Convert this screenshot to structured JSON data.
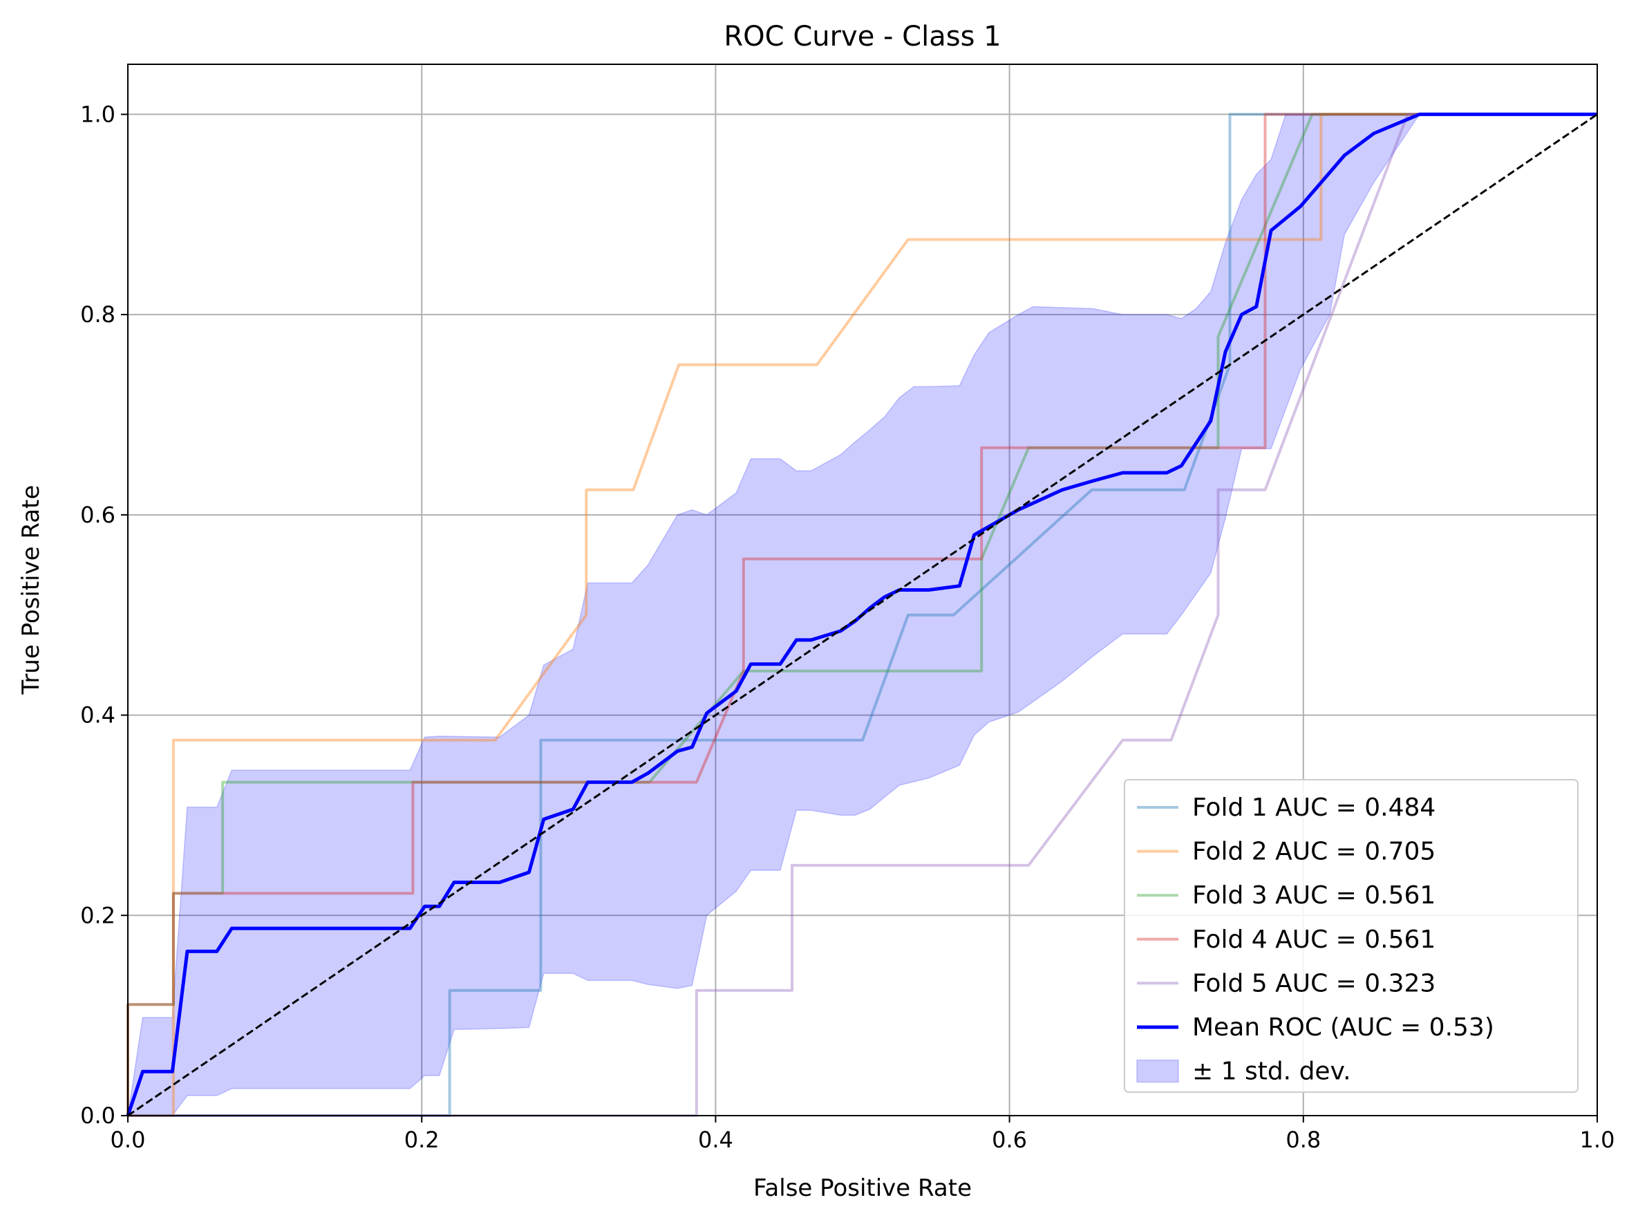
{
  "chart_data": {
    "type": "line",
    "title": "ROC Curve - Class 1",
    "xlabel": "False Positive Rate",
    "ylabel": "True Positive Rate",
    "xlim": [
      0,
      1
    ],
    "ylim": [
      0,
      1.05
    ],
    "grid": true,
    "legend_position": "bottom-right",
    "x_ticks": [
      "0.0",
      "0.2",
      "0.4",
      "0.6",
      "0.8",
      "1.0"
    ],
    "y_ticks": [
      "0.0",
      "0.2",
      "0.4",
      "0.6",
      "0.8",
      "1.0"
    ],
    "series": [
      {
        "name": "Fold 1 AUC = 0.484",
        "color": "#1f77b4",
        "opacity": 0.4,
        "points": [
          [
            0,
            0
          ],
          [
            0.219,
            0
          ],
          [
            0.219,
            0.125
          ],
          [
            0.281,
            0.125
          ],
          [
            0.281,
            0.375
          ],
          [
            0.5,
            0.375
          ],
          [
            0.531,
            0.5
          ],
          [
            0.562,
            0.5
          ],
          [
            0.656,
            0.625
          ],
          [
            0.719,
            0.625
          ],
          [
            0.75,
            0.75
          ],
          [
            0.75,
            1.0
          ],
          [
            1.0,
            1.0
          ]
        ]
      },
      {
        "name": "Fold 2 AUC = 0.705",
        "color": "#ff7f0e",
        "opacity": 0.4,
        "points": [
          [
            0,
            0
          ],
          [
            0.031,
            0
          ],
          [
            0.031,
            0.375
          ],
          [
            0.25,
            0.375
          ],
          [
            0.312,
            0.5
          ],
          [
            0.312,
            0.625
          ],
          [
            0.344,
            0.625
          ],
          [
            0.375,
            0.75
          ],
          [
            0.469,
            0.75
          ],
          [
            0.531,
            0.875
          ],
          [
            0.812,
            0.875
          ],
          [
            0.812,
            1.0
          ],
          [
            1.0,
            1.0
          ]
        ]
      },
      {
        "name": "Fold 3 AUC = 0.561",
        "color": "#2ca02c",
        "opacity": 0.4,
        "points": [
          [
            0,
            0
          ],
          [
            0,
            0.111
          ],
          [
            0.031,
            0.111
          ],
          [
            0.031,
            0.222
          ],
          [
            0.0645,
            0.222
          ],
          [
            0.0645,
            0.333
          ],
          [
            0.355,
            0.333
          ],
          [
            0.419,
            0.444
          ],
          [
            0.581,
            0.444
          ],
          [
            0.581,
            0.556
          ],
          [
            0.613,
            0.667
          ],
          [
            0.742,
            0.667
          ],
          [
            0.742,
            0.778
          ],
          [
            0.806,
            1.0
          ],
          [
            1.0,
            1.0
          ]
        ]
      },
      {
        "name": "Fold 4 AUC = 0.561",
        "color": "#d62728",
        "opacity": 0.4,
        "points": [
          [
            0,
            0
          ],
          [
            0,
            0.111
          ],
          [
            0.031,
            0.111
          ],
          [
            0.031,
            0.222
          ],
          [
            0.194,
            0.222
          ],
          [
            0.194,
            0.333
          ],
          [
            0.387,
            0.333
          ],
          [
            0.419,
            0.444
          ],
          [
            0.419,
            0.556
          ],
          [
            0.581,
            0.556
          ],
          [
            0.581,
            0.667
          ],
          [
            0.774,
            0.667
          ],
          [
            0.774,
            1.0
          ],
          [
            1.0,
            1.0
          ]
        ]
      },
      {
        "name": "Fold 5 AUC = 0.323",
        "color": "#9467bd",
        "opacity": 0.4,
        "points": [
          [
            0,
            0
          ],
          [
            0.387,
            0
          ],
          [
            0.387,
            0.125
          ],
          [
            0.452,
            0.125
          ],
          [
            0.452,
            0.25
          ],
          [
            0.613,
            0.25
          ],
          [
            0.677,
            0.375
          ],
          [
            0.71,
            0.375
          ],
          [
            0.742,
            0.5
          ],
          [
            0.742,
            0.625
          ],
          [
            0.774,
            0.625
          ],
          [
            0.871,
            1.0
          ],
          [
            1.0,
            1.0
          ]
        ]
      },
      {
        "name": "Mean ROC (AUC = 0.53)",
        "color": "#0000ff",
        "opacity": 1,
        "points": [
          [
            0,
            0
          ],
          [
            0.0101,
            0.044
          ],
          [
            0.0303,
            0.044
          ],
          [
            0.0404,
            0.164
          ],
          [
            0.0606,
            0.164
          ],
          [
            0.0707,
            0.187
          ],
          [
            0.192,
            0.187
          ],
          [
            0.202,
            0.209
          ],
          [
            0.212,
            0.209
          ],
          [
            0.222,
            0.233
          ],
          [
            0.253,
            0.233
          ],
          [
            0.273,
            0.243
          ],
          [
            0.283,
            0.296
          ],
          [
            0.303,
            0.306
          ],
          [
            0.313,
            0.333
          ],
          [
            0.343,
            0.333
          ],
          [
            0.354,
            0.342
          ],
          [
            0.374,
            0.364
          ],
          [
            0.384,
            0.368
          ],
          [
            0.394,
            0.402
          ],
          [
            0.414,
            0.424
          ],
          [
            0.424,
            0.451
          ],
          [
            0.444,
            0.451
          ],
          [
            0.455,
            0.475
          ],
          [
            0.465,
            0.475
          ],
          [
            0.485,
            0.484
          ],
          [
            0.495,
            0.494
          ],
          [
            0.505,
            0.507
          ],
          [
            0.515,
            0.518
          ],
          [
            0.525,
            0.525
          ],
          [
            0.545,
            0.525
          ],
          [
            0.566,
            0.529
          ],
          [
            0.576,
            0.58
          ],
          [
            0.606,
            0.605
          ],
          [
            0.636,
            0.625
          ],
          [
            0.657,
            0.634
          ],
          [
            0.677,
            0.642
          ],
          [
            0.707,
            0.642
          ],
          [
            0.717,
            0.649
          ],
          [
            0.737,
            0.694
          ],
          [
            0.747,
            0.763
          ],
          [
            0.758,
            0.8
          ],
          [
            0.768,
            0.808
          ],
          [
            0.778,
            0.884
          ],
          [
            0.798,
            0.908
          ],
          [
            0.808,
            0.925
          ],
          [
            0.828,
            0.959
          ],
          [
            0.848,
            0.981
          ],
          [
            0.879,
            1.0
          ],
          [
            1.0,
            1.0
          ]
        ]
      }
    ],
    "reference_line": {
      "points": [
        [
          0,
          0
        ],
        [
          1,
          1
        ]
      ],
      "color": "#000000",
      "style": "dashed"
    },
    "std_band": {
      "name": "± 1 std. dev.",
      "color": "#0000ff",
      "opacity": 0.2,
      "upper": [
        [
          0,
          0
        ],
        [
          0.0101,
          0.098
        ],
        [
          0.0303,
          0.098
        ],
        [
          0.0404,
          0.308
        ],
        [
          0.0606,
          0.308
        ],
        [
          0.0707,
          0.345
        ],
        [
          0.192,
          0.345
        ],
        [
          0.202,
          0.378
        ],
        [
          0.212,
          0.379
        ],
        [
          0.253,
          0.378
        ],
        [
          0.273,
          0.4
        ],
        [
          0.283,
          0.45
        ],
        [
          0.303,
          0.466
        ],
        [
          0.313,
          0.532
        ],
        [
          0.343,
          0.532
        ],
        [
          0.354,
          0.55
        ],
        [
          0.374,
          0.6
        ],
        [
          0.384,
          0.605
        ],
        [
          0.394,
          0.6
        ],
        [
          0.414,
          0.622
        ],
        [
          0.424,
          0.656
        ],
        [
          0.444,
          0.656
        ],
        [
          0.455,
          0.644
        ],
        [
          0.465,
          0.644
        ],
        [
          0.485,
          0.66
        ],
        [
          0.495,
          0.673
        ],
        [
          0.505,
          0.685
        ],
        [
          0.515,
          0.698
        ],
        [
          0.525,
          0.717
        ],
        [
          0.535,
          0.728
        ],
        [
          0.545,
          0.728
        ],
        [
          0.566,
          0.729
        ],
        [
          0.576,
          0.76
        ],
        [
          0.586,
          0.782
        ],
        [
          0.606,
          0.8
        ],
        [
          0.616,
          0.808
        ],
        [
          0.657,
          0.806
        ],
        [
          0.677,
          0.8
        ],
        [
          0.707,
          0.8
        ],
        [
          0.717,
          0.796
        ],
        [
          0.727,
          0.806
        ],
        [
          0.737,
          0.823
        ],
        [
          0.747,
          0.872
        ],
        [
          0.758,
          0.915
        ],
        [
          0.768,
          0.94
        ],
        [
          0.778,
          0.955
        ],
        [
          0.788,
          1.0
        ],
        [
          0.879,
          1.0
        ],
        [
          1.0,
          1.0
        ]
      ],
      "lower": [
        [
          0,
          0
        ],
        [
          0.0101,
          0
        ],
        [
          0.0303,
          0
        ],
        [
          0.0404,
          0.02
        ],
        [
          0.0606,
          0.02
        ],
        [
          0.0707,
          0.027
        ],
        [
          0.192,
          0.027
        ],
        [
          0.202,
          0.04
        ],
        [
          0.212,
          0.04
        ],
        [
          0.222,
          0.086
        ],
        [
          0.253,
          0.087
        ],
        [
          0.273,
          0.088
        ],
        [
          0.283,
          0.142
        ],
        [
          0.303,
          0.142
        ],
        [
          0.313,
          0.135
        ],
        [
          0.343,
          0.135
        ],
        [
          0.354,
          0.131
        ],
        [
          0.374,
          0.127
        ],
        [
          0.384,
          0.13
        ],
        [
          0.394,
          0.2
        ],
        [
          0.414,
          0.224
        ],
        [
          0.424,
          0.245
        ],
        [
          0.444,
          0.245
        ],
        [
          0.455,
          0.305
        ],
        [
          0.465,
          0.305
        ],
        [
          0.485,
          0.3
        ],
        [
          0.495,
          0.3
        ],
        [
          0.505,
          0.306
        ],
        [
          0.525,
          0.33
        ],
        [
          0.545,
          0.337
        ],
        [
          0.566,
          0.35
        ],
        [
          0.576,
          0.38
        ],
        [
          0.586,
          0.393
        ],
        [
          0.606,
          0.403
        ],
        [
          0.636,
          0.434
        ],
        [
          0.657,
          0.459
        ],
        [
          0.677,
          0.481
        ],
        [
          0.707,
          0.481
        ],
        [
          0.717,
          0.5
        ],
        [
          0.737,
          0.542
        ],
        [
          0.747,
          0.597
        ],
        [
          0.758,
          0.666
        ],
        [
          0.778,
          0.666
        ],
        [
          0.798,
          0.745
        ],
        [
          0.818,
          0.8
        ],
        [
          0.828,
          0.88
        ],
        [
          0.848,
          0.932
        ],
        [
          0.879,
          1.0
        ],
        [
          1.0,
          1.0
        ]
      ]
    }
  }
}
